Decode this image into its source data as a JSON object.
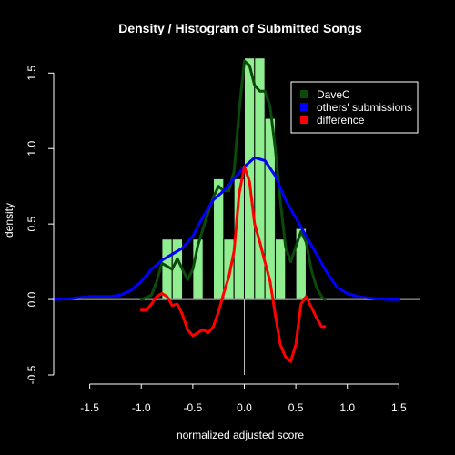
{
  "chart_data": {
    "type": "histogram+density",
    "title": "Density / Histogram of Submitted Songs",
    "xlabel": "normalized adjusted score",
    "ylabel": "density",
    "xlim": [
      -1.85,
      1.7
    ],
    "ylim": [
      -0.5,
      1.55
    ],
    "x_ticks": [
      -1.5,
      -1.0,
      -0.5,
      0.0,
      0.5,
      1.0,
      1.5
    ],
    "x_tick_labels": [
      "-1.5",
      "-1.0",
      "-0.5",
      "0.0",
      "0.5",
      "1.0",
      "1.5"
    ],
    "y_ticks": [
      -0.5,
      0.0,
      0.5,
      1.0,
      1.5
    ],
    "y_tick_labels": [
      "-0.5",
      "0.0",
      "0.5",
      "1.0",
      "1.5"
    ],
    "histogram": {
      "color": "#90ee90",
      "bin_width": 0.1,
      "bins": [
        {
          "x0": -0.8,
          "x1": -0.7,
          "density": 0.4
        },
        {
          "x0": -0.7,
          "x1": -0.6,
          "density": 0.4
        },
        {
          "x0": -0.5,
          "x1": -0.4,
          "density": 0.4
        },
        {
          "x0": -0.3,
          "x1": -0.2,
          "density": 0.8
        },
        {
          "x0": -0.2,
          "x1": -0.1,
          "density": 0.4
        },
        {
          "x0": -0.1,
          "x1": 0.0,
          "density": 0.8
        },
        {
          "x0": 0.0,
          "x1": 0.1,
          "density": 1.6
        },
        {
          "x0": 0.1,
          "x1": 0.2,
          "density": 1.6
        },
        {
          "x0": 0.2,
          "x1": 0.3,
          "density": 1.2
        },
        {
          "x0": 0.3,
          "x1": 0.4,
          "density": 0.4
        },
        {
          "x0": 0.5,
          "x1": 0.6,
          "density": 0.47
        }
      ]
    },
    "series": [
      {
        "name": "DaveC",
        "color": "#0a4a0a",
        "x": [
          -1.0,
          -0.9,
          -0.85,
          -0.8,
          -0.75,
          -0.7,
          -0.65,
          -0.6,
          -0.55,
          -0.5,
          -0.45,
          -0.4,
          -0.35,
          -0.3,
          -0.25,
          -0.2,
          -0.15,
          -0.1,
          -0.05,
          0.0,
          0.05,
          0.1,
          0.15,
          0.2,
          0.25,
          0.3,
          0.35,
          0.4,
          0.45,
          0.5,
          0.55,
          0.6,
          0.65,
          0.7,
          0.75,
          0.78
        ],
        "y": [
          0.0,
          0.03,
          0.12,
          0.24,
          0.22,
          0.2,
          0.27,
          0.2,
          0.13,
          0.2,
          0.36,
          0.47,
          0.58,
          0.68,
          0.75,
          0.72,
          0.72,
          0.85,
          1.25,
          1.58,
          1.55,
          1.42,
          1.38,
          1.38,
          1.28,
          1.0,
          0.65,
          0.35,
          0.25,
          0.35,
          0.45,
          0.38,
          0.2,
          0.08,
          0.02,
          0.0
        ]
      },
      {
        "name": "others' submissions",
        "color": "#0000ff",
        "x": [
          -1.85,
          -1.7,
          -1.5,
          -1.3,
          -1.2,
          -1.1,
          -1.0,
          -0.9,
          -0.8,
          -0.7,
          -0.6,
          -0.5,
          -0.4,
          -0.3,
          -0.2,
          -0.1,
          0.0,
          0.1,
          0.2,
          0.3,
          0.4,
          0.5,
          0.6,
          0.7,
          0.8,
          0.9,
          1.0,
          1.1,
          1.2,
          1.3,
          1.4,
          1.5
        ],
        "y": [
          0.0,
          0.005,
          0.02,
          0.02,
          0.03,
          0.06,
          0.12,
          0.2,
          0.26,
          0.3,
          0.34,
          0.42,
          0.55,
          0.66,
          0.72,
          0.8,
          0.88,
          0.94,
          0.92,
          0.82,
          0.66,
          0.54,
          0.42,
          0.3,
          0.18,
          0.08,
          0.04,
          0.02,
          0.01,
          0.005,
          0.0,
          0.0
        ]
      },
      {
        "name": "difference",
        "color": "#ff0000",
        "x": [
          -1.0,
          -0.95,
          -0.9,
          -0.85,
          -0.8,
          -0.75,
          -0.7,
          -0.65,
          -0.6,
          -0.55,
          -0.5,
          -0.45,
          -0.4,
          -0.35,
          -0.3,
          -0.25,
          -0.2,
          -0.15,
          -0.1,
          -0.05,
          0.0,
          0.05,
          0.1,
          0.15,
          0.2,
          0.25,
          0.3,
          0.35,
          0.4,
          0.45,
          0.5,
          0.55,
          0.6,
          0.65,
          0.7,
          0.75,
          0.78
        ],
        "y": [
          -0.07,
          -0.07,
          -0.03,
          0.02,
          0.04,
          0.02,
          -0.04,
          -0.03,
          -0.1,
          -0.2,
          -0.24,
          -0.22,
          -0.2,
          -0.22,
          -0.18,
          -0.08,
          0.04,
          0.15,
          0.32,
          0.7,
          0.88,
          0.78,
          0.5,
          0.38,
          0.25,
          0.12,
          -0.1,
          -0.3,
          -0.38,
          -0.41,
          -0.3,
          -0.03,
          0.02,
          -0.05,
          -0.12,
          -0.18,
          -0.18
        ]
      }
    ],
    "legend": {
      "position": "top-right",
      "entries": [
        "DaveC",
        "others' submissions",
        "difference"
      ]
    }
  }
}
